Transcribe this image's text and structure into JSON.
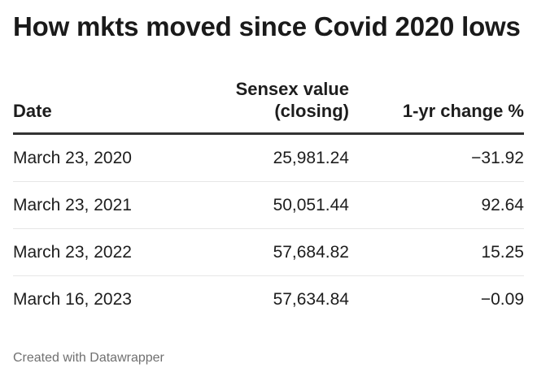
{
  "title": "How mkts moved since Covid 2020 lows",
  "footer": "Created with Datawrapper",
  "chart_data": {
    "type": "table",
    "title": "How mkts moved since Covid 2020 lows",
    "columns": [
      "Date",
      "Sensex value (closing)",
      "1-yr change %"
    ],
    "rows": [
      [
        "March 23, 2020",
        "25,981.24",
        "−31.92"
      ],
      [
        "March 23, 2021",
        "50,051.44",
        "92.64"
      ],
      [
        "March 23, 2022",
        "57,684.82",
        "15.25"
      ],
      [
        "March 16, 2023",
        "57,634.84",
        "−0.09"
      ]
    ]
  }
}
